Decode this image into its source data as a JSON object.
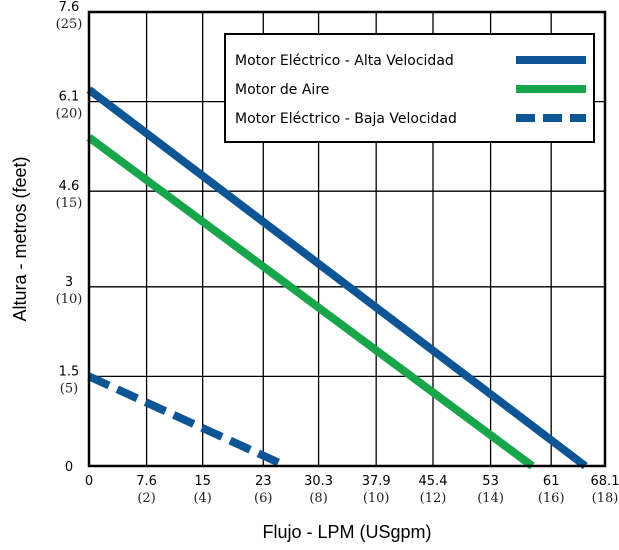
{
  "chart_data": {
    "type": "line",
    "title": "",
    "xlabel": "Flujo - LPM (USgpm)",
    "ylabel": "Altura - metros (feet)",
    "xlim": [
      0,
      68.1
    ],
    "ylim": [
      0,
      7.6
    ],
    "x_ticks": [
      {
        "main": "0",
        "sub": "",
        "value": 0
      },
      {
        "main": "7.6",
        "sub": "(2)",
        "value": 7.6
      },
      {
        "main": "15",
        "sub": "(4)",
        "value": 15
      },
      {
        "main": "23",
        "sub": "(6)",
        "value": 23
      },
      {
        "main": "30.3",
        "sub": "(8)",
        "value": 30.3
      },
      {
        "main": "37.9",
        "sub": "(10)",
        "value": 37.9
      },
      {
        "main": "45.4",
        "sub": "(12)",
        "value": 45.4
      },
      {
        "main": "53",
        "sub": "(14)",
        "value": 53
      },
      {
        "main": "61",
        "sub": "(16)",
        "value": 61
      },
      {
        "main": "68.1",
        "sub": "(18)",
        "value": 68.1
      }
    ],
    "y_ticks": [
      {
        "main": "0",
        "sub": "",
        "value": 0
      },
      {
        "main": "1.5",
        "sub": "(5)",
        "value": 1.5
      },
      {
        "main": "3",
        "sub": "(10)",
        "value": 3
      },
      {
        "main": "4.6",
        "sub": "(15)",
        "value": 4.6
      },
      {
        "main": "6.1",
        "sub": "(20)",
        "value": 6.1
      },
      {
        "main": "7.6",
        "sub": "(25)",
        "value": 7.6
      }
    ],
    "grid": true,
    "legend_position": "top-right",
    "series": [
      {
        "name": "Motor Eléctrico -  Alta Velocidad",
        "color": "#0e5596",
        "style": "solid",
        "points": [
          [
            0,
            6.3
          ],
          [
            65.5,
            0
          ]
        ]
      },
      {
        "name": "Motor de Aire",
        "color": "#19a64a",
        "style": "solid",
        "points": [
          [
            0,
            5.5
          ],
          [
            58.5,
            0
          ]
        ]
      },
      {
        "name": "Motor Eléctrico - Baja Velocidad",
        "color": "#0e5596",
        "style": "dashed",
        "points": [
          [
            0,
            1.5
          ],
          [
            26,
            0
          ]
        ]
      }
    ]
  }
}
